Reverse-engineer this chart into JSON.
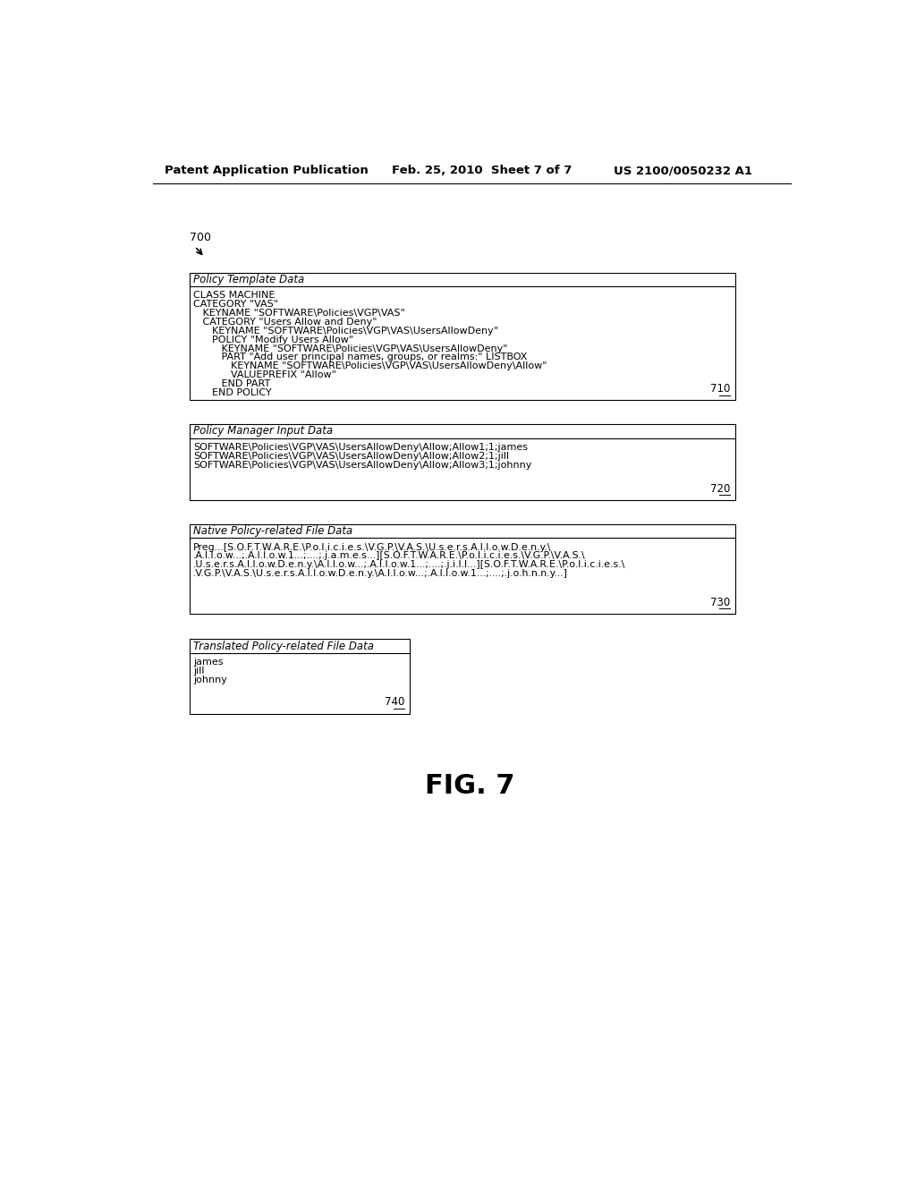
{
  "bg_color": "#ffffff",
  "header_left": "Patent Application Publication",
  "header_mid": "Feb. 25, 2010  Sheet 7 of 7",
  "header_right": "US 2100/0050232 A1",
  "label_700": "700",
  "box710_title": "Policy Template Data",
  "box710_lines": [
    "CLASS MACHINE",
    "CATEGORY \"VAS\"",
    "   KEYNAME \"SOFTWARE\\Policies\\VGP\\VAS\"",
    "   CATEGORY \"Users Allow and Deny\"",
    "      KEYNAME \"SOFTWARE\\Policies\\VGP\\VAS\\UsersAllowDeny\"",
    "      POLICY \"Modify Users Allow\"",
    "         KEYNAME \"SOFTWARE\\Policies\\VGP\\VAS\\UsersAllowDeny\"",
    "         PART \"Add user principal names, groups, or realms:\" LISTBOX",
    "            KEYNAME \"SOFTWARE\\Policies\\VGP\\VAS\\UsersAllowDeny\\Allow\"",
    "            VALUEPREFIX \"Allow\"",
    "         END PART",
    "      END POLICY"
  ],
  "box710_label": "710",
  "box720_title": "Policy Manager Input Data",
  "box720_lines": [
    "SOFTWARE\\Policies\\VGP\\VAS\\UsersAllowDeny\\Allow;Allow1;1;james",
    "SOFTWARE\\Policies\\VGP\\VAS\\UsersAllowDeny\\Allow;Allow2;1;jill",
    "SOFTWARE\\Policies\\VGP\\VAS\\UsersAllowDeny\\Allow;Allow3;1;johnny"
  ],
  "box720_label": "720",
  "box730_title": "Native Policy-related File Data",
  "box730_lines": [
    "Preg...[S.O.F.T.W.A.R.E.\\P.o.l.i.c.i.e.s.\\V.G.P.\\V.A.S.\\U.s.e.r.s.A.l.l.o.w.D.e.n.y.\\",
    ".A.l.l.o.w...;.A.l.l.o.w.1...;....;.j.a.m.e.s...][S.O.F.T.W.A.R.E.\\P.o.l.i.c.i.e.s.\\V.G.P.\\V.A.S.\\",
    ".U.s.e.r.s.A.l.l.o.w.D.e.n.y.\\A.l.l.o.w...;.A.l.l.o.w.1...;....;.j.i.l.l...][S.O.F.T.W.A.R.E.\\P.o.l.i.c.i.e.s.\\",
    ".V.G.P.\\V.A.S.\\U.s.e.r.s.A.l.l.o.w.D.e.n.y.\\A.l.l.o.w...;.A.l.l.o.w.1...;....;.j.o.h.n.n.y...]"
  ],
  "box730_label": "730",
  "box740_title": "Translated Policy-related File Data",
  "box740_lines": [
    "james",
    "jill",
    "johnny"
  ],
  "box740_label": "740",
  "fig_label": "FIG. 7"
}
